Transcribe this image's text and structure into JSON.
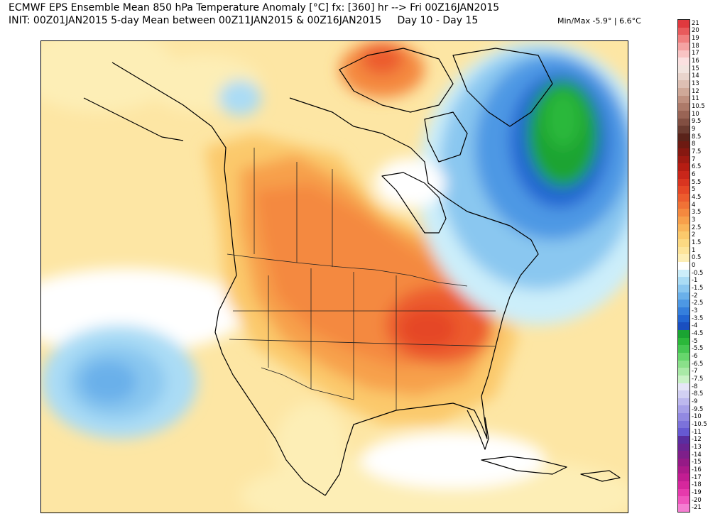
{
  "header": {
    "title_line1": "ECMWF EPS Ensemble Mean 850 hPa Temperature Anomaly [°C] fx: [360] hr --> Fri 00Z16JAN2015",
    "title_line2": "INIT: 00Z01JAN2015 5-day Mean between 00Z11JAN2015 & 00Z16JAN2015     Day 10 - Day 15",
    "minmax": "Min/Max -5.9° | 6.6°C"
  },
  "map": {
    "region": "North America",
    "projection": "polar stereographic",
    "field": "850 hPa temperature anomaly",
    "warm_color": "#e8552a",
    "cold_color": "#2a7fe0",
    "min_color": "#1fb32a"
  },
  "colorbar": {
    "labels": [
      "21",
      "20",
      "19",
      "18",
      "17",
      "16",
      "15",
      "14",
      "13",
      "12",
      "11",
      "10.5",
      "10",
      "9.5",
      "9",
      "8.5",
      "8",
      "7.5",
      "7",
      "6.5",
      "6",
      "5.5",
      "5",
      "4.5",
      "4",
      "3.5",
      "3",
      "2.5",
      "2",
      "1.5",
      "1",
      "0.5",
      "0",
      "-0.5",
      "-1",
      "-1.5",
      "-2",
      "-2.5",
      "-3",
      "-3.5",
      "-4",
      "-4.5",
      "-5",
      "-5.5",
      "-6",
      "-6.5",
      "-7",
      "-7.5",
      "-8",
      "-8.5",
      "-9",
      "-9.5",
      "-10",
      "-10.5",
      "-11",
      "-12",
      "-13",
      "-14",
      "-15",
      "-16",
      "-17",
      "-18",
      "-19",
      "-20",
      "-21"
    ],
    "colors": [
      "#e0393e",
      "#e85a5c",
      "#f07f7f",
      "#f5a3a3",
      "#f9c4c4",
      "#fbe0e0",
      "#f2e4df",
      "#e9d4cc",
      "#ddbfb3",
      "#cfa898",
      "#bf907f",
      "#ad7a69",
      "#996455",
      "#824f42",
      "#6b3b30",
      "#5a231a",
      "#6e1a12",
      "#861811",
      "#9e1a12",
      "#b51d13",
      "#c9261a",
      "#d93520",
      "#e54726",
      "#ec5c2e",
      "#f07236",
      "#f4893f",
      "#f7a04b",
      "#f9b55a",
      "#fbc96c",
      "#fcd982",
      "#fde49a",
      "#fdeeb6",
      "#ffffff",
      "#cceefa",
      "#aadcf5",
      "#8ac7f0",
      "#6ab0ea",
      "#4d98e4",
      "#357fdc",
      "#2266d2",
      "#1a4fc0",
      "#1aa432",
      "#2bb83a",
      "#45c752",
      "#66d66c",
      "#8ae08a",
      "#a9e9a7",
      "#c9f2c6",
      "#e6e6f7",
      "#d2d0f3",
      "#bdb8ee",
      "#a7a0e8",
      "#9289e2",
      "#7c72db",
      "#6659d2",
      "#5a2ea0",
      "#6a2593",
      "#7e1f8a",
      "#951a86",
      "#ac1a8a",
      "#c21d92",
      "#d6279d",
      "#e63aac",
      "#f055bd",
      "#f57ed2"
    ]
  }
}
